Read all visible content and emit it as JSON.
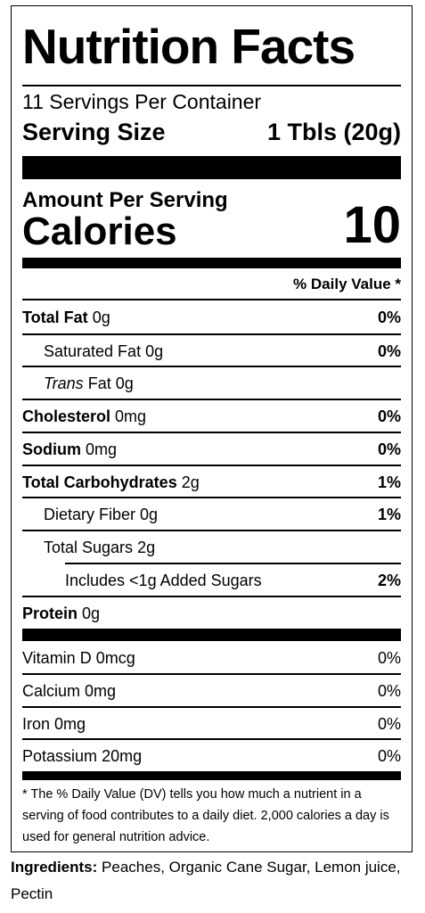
{
  "title": "Nutrition Facts",
  "servings_per_container": "11 Servings Per Container",
  "serving_size": {
    "label": "Serving Size",
    "value": "1 Tbls (20g)"
  },
  "amount_per_serving": "Amount Per Serving",
  "calories": {
    "label": "Calories",
    "value": "10"
  },
  "daily_value_header": "% Daily Value *",
  "nutrients": [
    {
      "name": "Total Fat",
      "amount": "0g",
      "pct": "0%"
    },
    {
      "name": "Saturated Fat",
      "amount": "0g",
      "pct": "0%"
    },
    {
      "name_italic": "Trans",
      "name": "Fat",
      "amount": "0g",
      "pct": ""
    },
    {
      "name": "Cholesterol",
      "amount": "0mg",
      "pct": "0%"
    },
    {
      "name": "Sodium",
      "amount": "0mg",
      "pct": "0%"
    },
    {
      "name": "Total Carbohydrates",
      "amount": "2g",
      "pct": "1%"
    },
    {
      "name": "Dietary Fiber",
      "amount": "0g",
      "pct": "1%"
    },
    {
      "name": "Total Sugars",
      "amount": "2g",
      "pct": ""
    },
    {
      "name": "Includes <1g Added Sugars",
      "amount": "",
      "pct": "2%"
    },
    {
      "name": "Protein",
      "amount": "0g",
      "pct": ""
    }
  ],
  "vitamins": [
    {
      "name": "Vitamin D",
      "amount": "0mcg",
      "pct": "0%"
    },
    {
      "name": "Calcium",
      "amount": "0mg",
      "pct": "0%"
    },
    {
      "name": "Iron",
      "amount": "0mg",
      "pct": "0%"
    },
    {
      "name": "Potassium",
      "amount": "20mg",
      "pct": "0%"
    }
  ],
  "footnote": "* The % Daily Value (DV) tells you how much a nutrient in a serving of food contributes to a daily diet. 2,000 calories a day is used for general nutrition advice.",
  "ingredients": {
    "label": "Ingredients:",
    "text": "Peaches, Organic Cane Sugar, Lemon juice, Pectin"
  }
}
